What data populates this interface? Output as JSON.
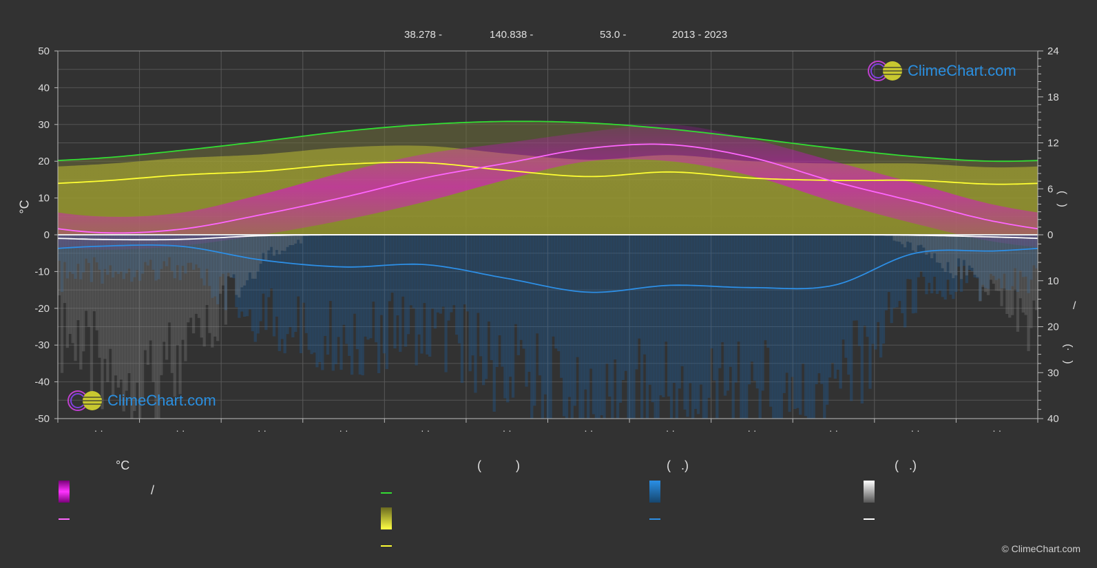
{
  "header": {
    "latitude": "38.278 -",
    "longitude": "140.838 -",
    "elevation": "53.0 -",
    "years": "2013 - 2023"
  },
  "logo": {
    "text": "ClimeChart.com"
  },
  "copyright": "© ClimeChart.com",
  "legend": {
    "col1_heading": "°C",
    "col2_heading": "(          )",
    "col3_heading": "(   .)",
    "col4_heading": "(   .)",
    "slash": "/"
  },
  "colors": {
    "background": "#323232",
    "temp_range": "#e400e4",
    "mean_temp": "#ff66ff",
    "daylight": "#33dd33",
    "sunshine": "#cccc33",
    "sunshine_line": "#ffff33",
    "rain": "#1e7ad2",
    "rain_line": "#2d8fe6",
    "snow": "#bbbbbb",
    "snow_line": "#ffffff"
  },
  "chart_data": {
    "type": "area",
    "x_ticks": [
      "· ·",
      "· ·",
      "· ·",
      "· ·",
      "· ·",
      "· ·",
      "· ·",
      "· ·",
      "· ·",
      "· ·",
      "· ·",
      "· ·"
    ],
    "left_axis": {
      "label": "°C",
      "min": -50,
      "max": 50,
      "ticks": [
        50,
        40,
        30,
        20,
        10,
        0,
        -10,
        -20,
        -30,
        -40,
        -50
      ]
    },
    "right_axis_top": {
      "min": 0,
      "max": 24,
      "ticks": [
        24,
        18,
        12,
        6,
        0
      ],
      "label": "(   )"
    },
    "right_axis_bottom": {
      "min": 0,
      "max": 40,
      "ticks": [
        0,
        10,
        20,
        30,
        40
      ],
      "label": "/",
      "label2": "(·   )"
    },
    "grid": true,
    "x_months": [
      0.5,
      1.5,
      2.5,
      3.5,
      4.5,
      5.5,
      6.5,
      7.5,
      8.5,
      9.5,
      10.5,
      11.5
    ],
    "series": [
      {
        "key": "daylight_hours",
        "values": [
          10.0,
          11.0,
          12.2,
          13.5,
          14.4,
          14.8,
          14.6,
          13.8,
          12.6,
          11.3,
          10.2,
          9.6
        ]
      },
      {
        "key": "sunshine_hours",
        "values": [
          7.0,
          7.8,
          8.3,
          9.2,
          9.4,
          8.4,
          7.6,
          8.2,
          7.4,
          7.1,
          7.1,
          6.6
        ]
      },
      {
        "key": "mean_temp",
        "values": [
          0.6,
          1.5,
          5.5,
          10.2,
          15.5,
          19.5,
          23.5,
          24.5,
          21.0,
          14.5,
          9.0,
          3.5
        ]
      },
      {
        "key": "temp_max",
        "values": [
          5,
          6,
          11,
          17,
          22,
          25,
          28,
          30,
          26,
          20,
          14,
          8
        ]
      },
      {
        "key": "temp_min",
        "values": [
          -4,
          -3,
          0,
          4,
          9,
          15,
          20,
          20,
          16,
          9,
          3,
          -2
        ]
      },
      {
        "key": "rain_mm",
        "values": [
          2.5,
          2.5,
          5.5,
          7.0,
          6.5,
          9.5,
          12.5,
          11.0,
          11.5,
          11.0,
          4.0,
          3.5
        ]
      },
      {
        "key": "snow_mm",
        "values": [
          1.0,
          1.0,
          0.2,
          0,
          0,
          0,
          0,
          0,
          0,
          0,
          0.1,
          0.5
        ]
      }
    ]
  }
}
